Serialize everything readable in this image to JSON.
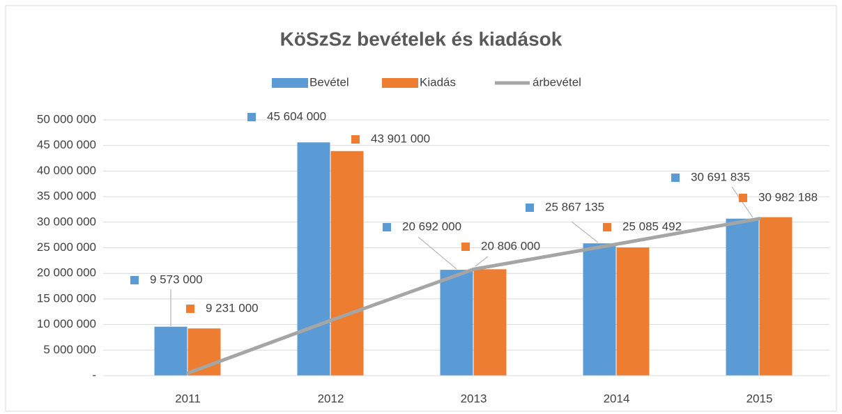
{
  "chart_data": {
    "type": "bar",
    "title": "KöSzSz bevételek és kiadások",
    "categories": [
      "2011",
      "2012",
      "2013",
      "2014",
      "2015"
    ],
    "series": [
      {
        "name": "Bevétel",
        "color": "#5b9bd5",
        "values": [
          9573000,
          45604000,
          20692000,
          25867135,
          30691835
        ],
        "value_labels": [
          "9 573 000",
          "45 604 000",
          "20 692 000",
          "25 867 135",
          "30 691 835"
        ]
      },
      {
        "name": "Kiadás",
        "color": "#ed7d31",
        "values": [
          9231000,
          43901000,
          20806000,
          25085492,
          30982188
        ],
        "value_labels": [
          "9 231 000",
          "43 901 000",
          "20 806 000",
          "25 085 492",
          "30 982 188"
        ]
      },
      {
        "name": "árbevétel",
        "type": "line",
        "color": "#a5a5a5",
        "values": [
          500000,
          10800000,
          20800000,
          25700000,
          30700000
        ]
      }
    ],
    "ylim": [
      0,
      50000000
    ],
    "yticks": [
      {
        "value": 0,
        "label": "-"
      },
      {
        "value": 5000000,
        "label": "5 000 000"
      },
      {
        "value": 10000000,
        "label": "10 000 000"
      },
      {
        "value": 15000000,
        "label": "15 000 000"
      },
      {
        "value": 20000000,
        "label": "20 000 000"
      },
      {
        "value": 25000000,
        "label": "25 000 000"
      },
      {
        "value": 30000000,
        "label": "30 000 000"
      },
      {
        "value": 35000000,
        "label": "35 000 000"
      },
      {
        "value": 40000000,
        "label": "40 000 000"
      },
      {
        "value": 45000000,
        "label": "45 000 000"
      },
      {
        "value": 50000000,
        "label": "50 000 000"
      }
    ],
    "grid": true,
    "legend": "top"
  }
}
